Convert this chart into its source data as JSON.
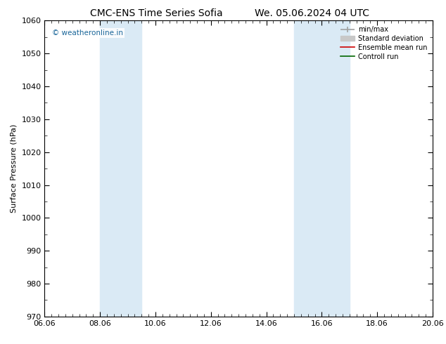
{
  "title_left": "CMC-ENS Time Series Sofia",
  "title_right": "We. 05.06.2024 04 UTC",
  "ylabel": "Surface Pressure (hPa)",
  "ylim": [
    970,
    1060
  ],
  "yticks": [
    970,
    980,
    990,
    1000,
    1010,
    1020,
    1030,
    1040,
    1050,
    1060
  ],
  "xticks": [
    "06.06",
    "08.06",
    "10.06",
    "12.06",
    "14.06",
    "16.06",
    "18.06",
    "20.06"
  ],
  "xtick_positions": [
    0,
    2,
    4,
    6,
    8,
    10,
    12,
    14
  ],
  "shaded_bands": [
    {
      "x_start": 2.0,
      "x_end": 3.5,
      "color": "#daeaf5",
      "alpha": 1.0
    },
    {
      "x_start": 9.0,
      "x_end": 11.0,
      "color": "#daeaf5",
      "alpha": 1.0
    }
  ],
  "watermark": "© weatheronline.in",
  "watermark_color": "#1a6699",
  "background_color": "#ffffff",
  "plot_bg_color": "#ffffff",
  "legend_items": [
    {
      "label": "min/max",
      "color": "#a0a0a0",
      "lw": 1.2
    },
    {
      "label": "Standard deviation",
      "color": "#c8c8c8",
      "lw": 5
    },
    {
      "label": "Ensemble mean run",
      "color": "#cc0000",
      "lw": 1.2
    },
    {
      "label": "Controll run",
      "color": "#006600",
      "lw": 1.2
    }
  ],
  "grid_color": "#cccccc",
  "title_fontsize": 10,
  "axis_label_fontsize": 8,
  "tick_fontsize": 8
}
